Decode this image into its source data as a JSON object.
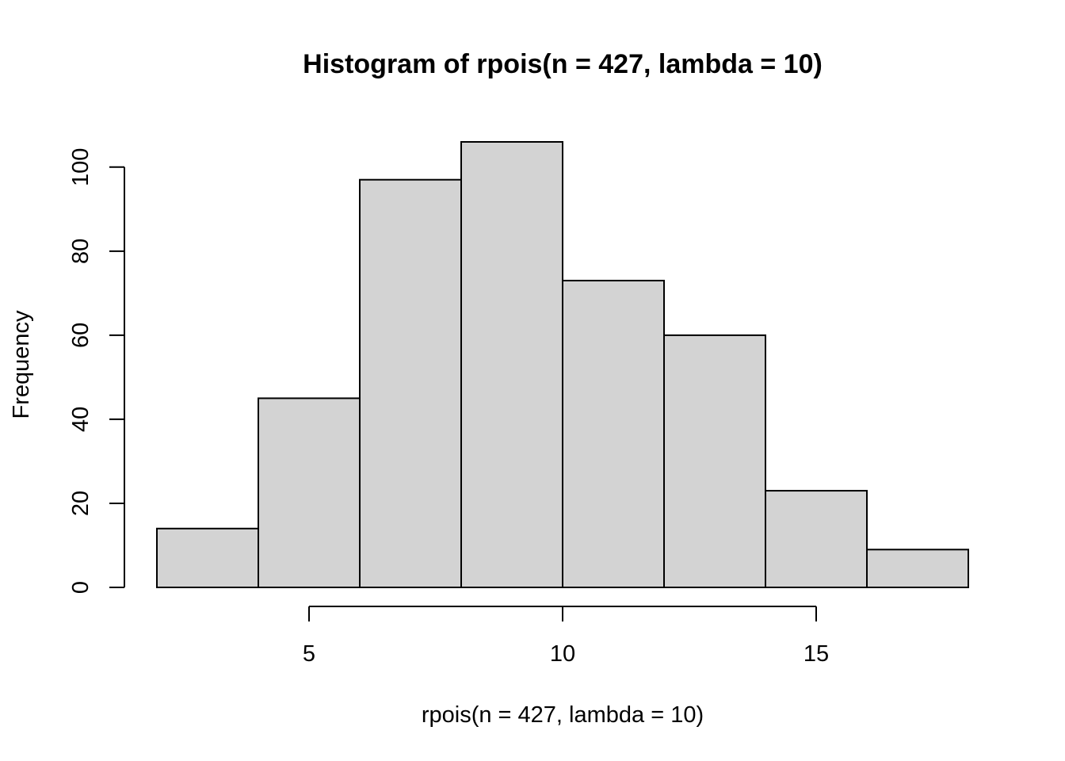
{
  "chart_data": {
    "type": "bar",
    "title": "Histogram of rpois(n = 427, lambda = 10)",
    "xlabel": "rpois(n = 427, lambda = 10)",
    "ylabel": "Frequency",
    "bins": [
      {
        "x0": 2,
        "x1": 4,
        "count": 14
      },
      {
        "x0": 4,
        "x1": 6,
        "count": 45
      },
      {
        "x0": 6,
        "x1": 8,
        "count": 97
      },
      {
        "x0": 8,
        "x1": 10,
        "count": 106
      },
      {
        "x0": 10,
        "x1": 12,
        "count": 73
      },
      {
        "x0": 12,
        "x1": 14,
        "count": 60
      },
      {
        "x0": 14,
        "x1": 16,
        "count": 23
      },
      {
        "x0": 16,
        "x1": 18,
        "count": 9
      }
    ],
    "xticks": [
      5,
      10,
      15
    ],
    "yticks": [
      0,
      20,
      40,
      60,
      80,
      100
    ],
    "xlim": [
      2,
      18
    ],
    "ylim": [
      0,
      106
    ],
    "bar_fill": "#d3d3d3",
    "bar_stroke": "#000000",
    "grid": false,
    "legend": "none"
  }
}
